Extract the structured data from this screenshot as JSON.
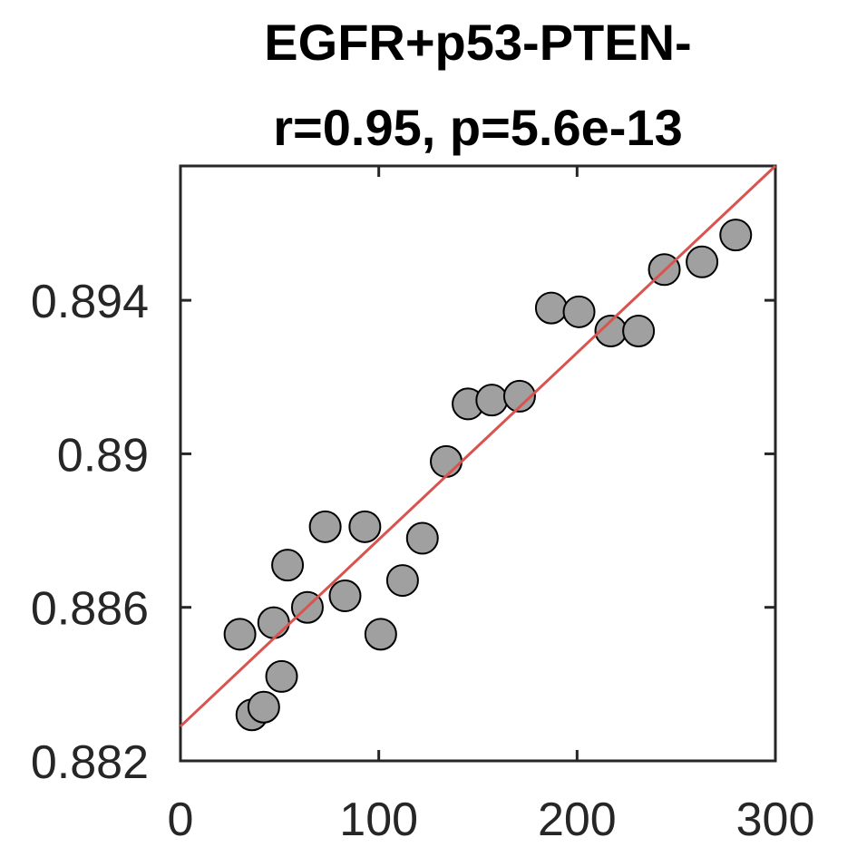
{
  "chart_data": {
    "type": "scatter",
    "title": [
      "EGFR+p53-PTEN-",
      "r=0.95, p=5.6e-13"
    ],
    "xlabel": "",
    "ylabel": "",
    "xlim": [
      0,
      300
    ],
    "ylim": [
      0.882,
      0.8975
    ],
    "xticks": [
      0,
      100,
      200,
      300
    ],
    "xtick_labels": [
      "0",
      "100",
      "200",
      "300"
    ],
    "yticks": [
      0.882,
      0.886,
      0.89,
      0.894
    ],
    "ytick_labels": [
      "0.882",
      "0.886",
      "0.89",
      "0.894"
    ],
    "grid": false,
    "legend": "none",
    "marker_color": "#a0a0a0",
    "marker_edge_color": "#000000",
    "line_color": "#d9534f",
    "series": [
      {
        "x": [
          30,
          36,
          42,
          47,
          51,
          54,
          64,
          73,
          83,
          93,
          101,
          112,
          122,
          134,
          145,
          157,
          171,
          187,
          201,
          217,
          231,
          244,
          263,
          280
        ],
        "y": [
          0.8853,
          0.8832,
          0.8834,
          0.8856,
          0.8842,
          0.8871,
          0.886,
          0.8881,
          0.8863,
          0.8881,
          0.8853,
          0.8867,
          0.8878,
          0.8898,
          0.8913,
          0.8914,
          0.8915,
          0.8938,
          0.8937,
          0.8932,
          0.8932,
          0.8948,
          0.895,
          0.8957
        ]
      }
    ],
    "fit_line": {
      "x": [
        0,
        300
      ],
      "y": [
        0.8829,
        0.8975
      ]
    }
  }
}
